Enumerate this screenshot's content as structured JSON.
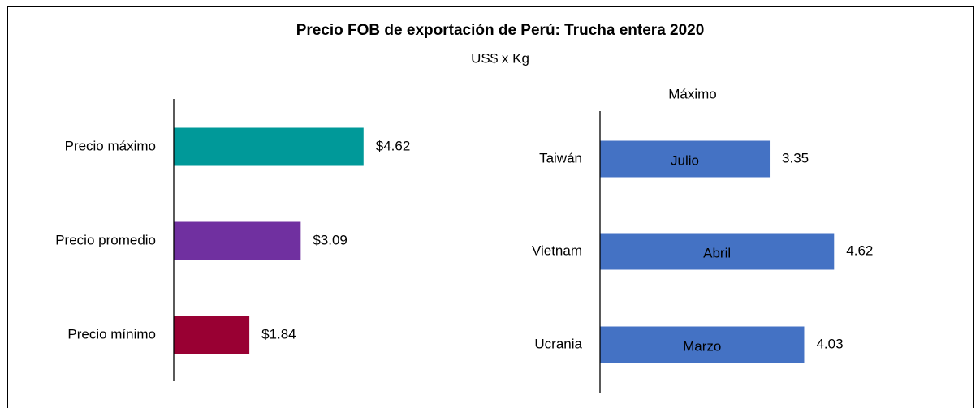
{
  "title": "Precio FOB de exportación de Perú: Trucha entera 2020",
  "subtitle": "US$ x Kg",
  "chart_data": [
    {
      "type": "bar",
      "orientation": "horizontal",
      "categories": [
        "Precio máximo",
        "Precio promedio",
        "Precio mínimo"
      ],
      "values": [
        4.62,
        3.09,
        1.84
      ],
      "value_labels": [
        "$4.62",
        "$3.09",
        "$1.84"
      ],
      "colors": [
        "#009999",
        "#7030a0",
        "#990033"
      ],
      "xlim": [
        0,
        5
      ]
    },
    {
      "type": "bar",
      "orientation": "horizontal",
      "title": "Máximo",
      "categories": [
        "Taiwán",
        "Vietnam",
        "Ucrania"
      ],
      "values": [
        3.35,
        4.62,
        4.03
      ],
      "annotations": [
        "Julio",
        "Abril",
        "Marzo"
      ],
      "color": "#4472c4",
      "xlim": [
        0,
        5
      ]
    }
  ]
}
